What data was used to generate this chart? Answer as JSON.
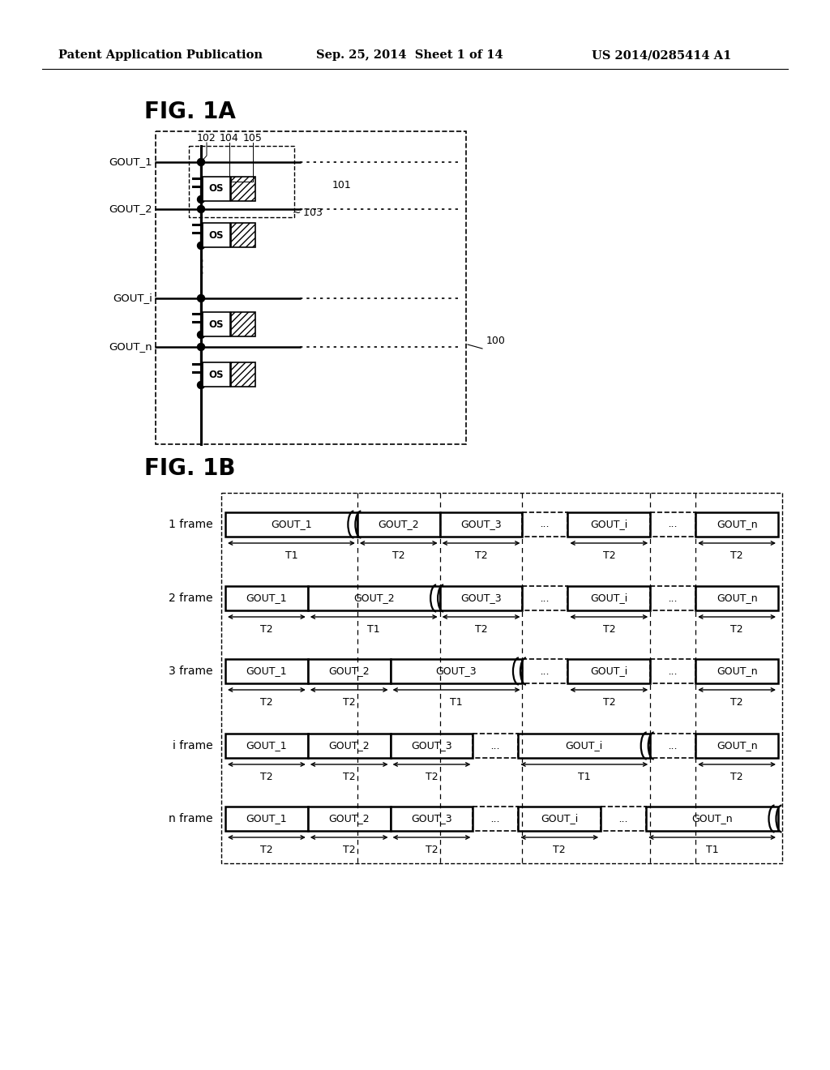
{
  "header_left": "Patent Application Publication",
  "header_center": "Sep. 25, 2014  Sheet 1 of 14",
  "header_right": "US 2014/0285414 A1",
  "fig1a_title": "FIG. 1A",
  "fig1b_title": "FIG. 1B",
  "bg_color": "#ffffff",
  "frames": [
    {
      "label": "1 frame",
      "segments": [
        "GOUT_1",
        "GOUT_2",
        "GOUT_3",
        "...",
        "GOUT_i",
        "...",
        "GOUT_n"
      ],
      "widths": [
        1.6,
        1.0,
        1.0,
        0.55,
        1.0,
        0.55,
        1.0
      ],
      "times": [
        "T1",
        "T2",
        "T2",
        "",
        "T2",
        "",
        "T2"
      ],
      "dotted_segs": [
        3,
        5
      ],
      "paren_after": 0
    },
    {
      "label": "2 frame",
      "segments": [
        "GOUT_1",
        "GOUT_2",
        "GOUT_3",
        "...",
        "GOUT_i",
        "...",
        "GOUT_n"
      ],
      "widths": [
        1.0,
        1.6,
        1.0,
        0.55,
        1.0,
        0.55,
        1.0
      ],
      "times": [
        "T2",
        "T1",
        "T2",
        "",
        "T2",
        "",
        "T2"
      ],
      "dotted_segs": [
        3,
        5
      ],
      "paren_after": 1
    },
    {
      "label": "3 frame",
      "segments": [
        "GOUT_1",
        "GOUT_2",
        "GOUT_3",
        "...",
        "GOUT_i",
        "...",
        "GOUT_n"
      ],
      "widths": [
        1.0,
        1.0,
        1.6,
        0.55,
        1.0,
        0.55,
        1.0
      ],
      "times": [
        "T2",
        "T2",
        "T1",
        "",
        "T2",
        "",
        "T2"
      ],
      "dotted_segs": [
        3,
        5
      ],
      "paren_after": 2
    },
    {
      "label": "i frame",
      "segments": [
        "GOUT_1",
        "GOUT_2",
        "GOUT_3",
        "...",
        "GOUT_i",
        "...",
        "GOUT_n"
      ],
      "widths": [
        1.0,
        1.0,
        1.0,
        0.55,
        1.6,
        0.55,
        1.0
      ],
      "times": [
        "T2",
        "T2",
        "T2",
        "",
        "T1",
        "",
        "T2"
      ],
      "dotted_segs": [
        3,
        5
      ],
      "paren_after": 4
    },
    {
      "label": "n frame",
      "segments": [
        "GOUT_1",
        "GOUT_2",
        "GOUT_3",
        "...",
        "GOUT_i",
        "...",
        "GOUT_n"
      ],
      "widths": [
        1.0,
        1.0,
        1.0,
        0.55,
        1.0,
        0.55,
        1.6
      ],
      "times": [
        "T2",
        "T2",
        "T2",
        "",
        "T2",
        "",
        "T1"
      ],
      "dotted_segs": [
        3,
        5
      ],
      "paren_after": 6
    }
  ]
}
